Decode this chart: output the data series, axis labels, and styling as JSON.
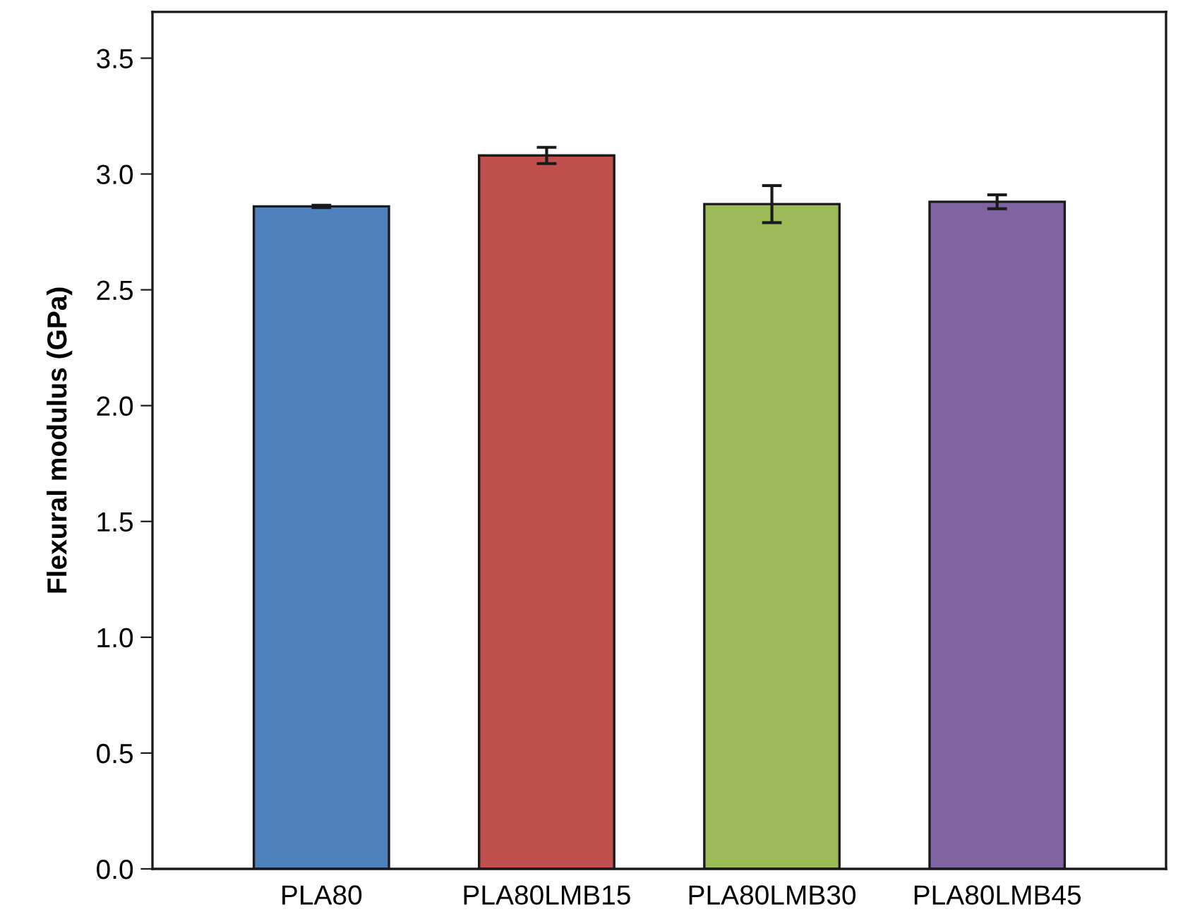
{
  "chart_data": {
    "type": "bar",
    "ylabel": "Flexural modulus (GPa)",
    "categories": [
      "PLA80",
      "PLA80LMB15",
      "PLA80LMB30",
      "PLA80LMB45"
    ],
    "values": [
      2.86,
      3.08,
      2.87,
      2.88
    ],
    "errors": [
      0.005,
      0.035,
      0.08,
      0.03
    ],
    "colors": [
      "#4f81bd",
      "#c0504d",
      "#9bbb59",
      "#8064a2"
    ],
    "ylim": [
      0,
      3.7
    ],
    "yticks": [
      {
        "value": 0,
        "label": "0.0"
      },
      0.5,
      {
        "value": 1,
        "label": "1.0"
      },
      1.5,
      {
        "value": 2,
        "label": "2.0"
      },
      2.5,
      {
        "value": 3,
        "label": "3.0"
      },
      3.5
    ],
    "grid": false,
    "legend": false
  }
}
